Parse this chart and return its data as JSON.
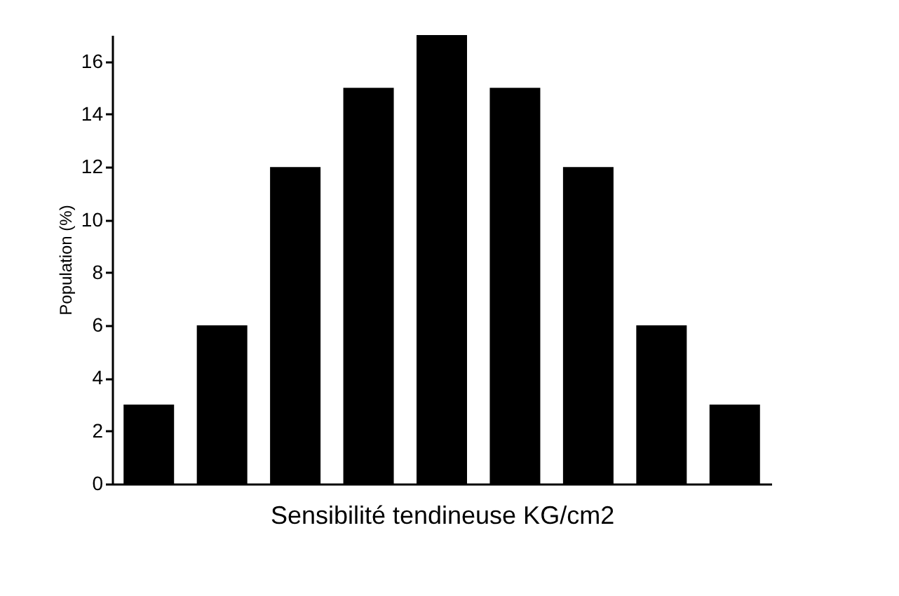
{
  "chart_data": {
    "type": "bar",
    "xlabel": "Sensibilité tendineuse KG/cm2",
    "ylabel": "Population (%)",
    "categories": [
      null,
      null,
      null,
      null,
      null,
      null,
      null,
      null,
      null
    ],
    "values": [
      3,
      6,
      12,
      15,
      17,
      15,
      12,
      6,
      3
    ],
    "color": "#000000",
    "ylim": [
      0,
      17
    ],
    "yticks": [
      0,
      2,
      4,
      6,
      8,
      10,
      12,
      14,
      16
    ],
    "tick_labels": "y",
    "grid": false
  }
}
